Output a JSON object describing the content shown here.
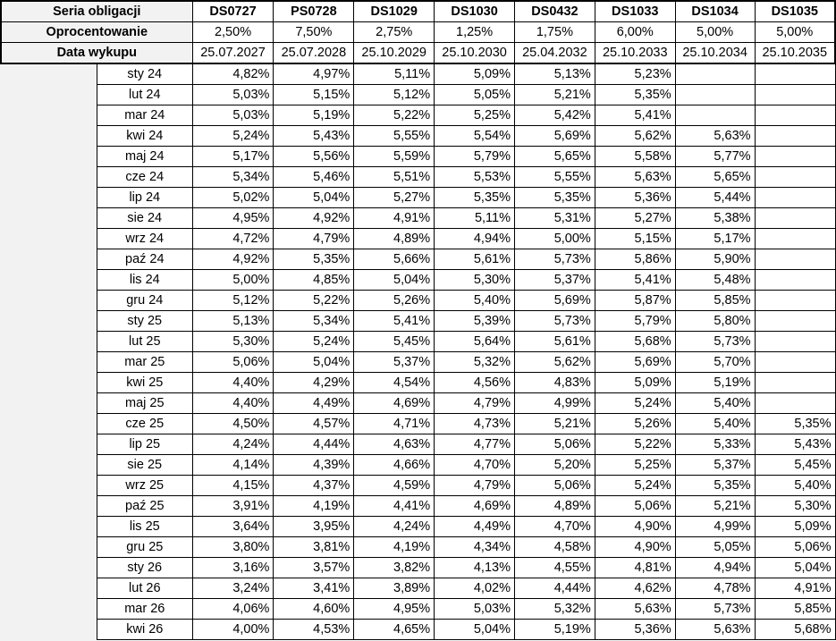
{
  "header": {
    "series_label": "Seria obligacji",
    "rate_label": "Oprocentowanie",
    "date_label": "Data wykupu"
  },
  "series": [
    {
      "code": "DS0727",
      "rate": "2,50%",
      "maturity": "25.07.2027"
    },
    {
      "code": "PS0728",
      "rate": "7,50%",
      "maturity": "25.07.2028"
    },
    {
      "code": "DS1029",
      "rate": "2,75%",
      "maturity": "25.10.2029"
    },
    {
      "code": "DS1030",
      "rate": "1,25%",
      "maturity": "25.10.2030"
    },
    {
      "code": "DS0432",
      "rate": "1,75%",
      "maturity": "25.04.2032"
    },
    {
      "code": "DS1033",
      "rate": "6,00%",
      "maturity": "25.10.2033"
    },
    {
      "code": "DS1034",
      "rate": "5,00%",
      "maturity": "25.10.2034"
    },
    {
      "code": "DS1035",
      "rate": "5,00%",
      "maturity": "25.10.2035"
    }
  ],
  "rows": [
    {
      "month": "sty 24",
      "values": [
        "4,82%",
        "4,97%",
        "5,11%",
        "5,09%",
        "5,13%",
        "5,23%",
        "",
        ""
      ]
    },
    {
      "month": "lut 24",
      "values": [
        "5,03%",
        "5,15%",
        "5,12%",
        "5,05%",
        "5,21%",
        "5,35%",
        "",
        ""
      ]
    },
    {
      "month": "mar 24",
      "values": [
        "5,03%",
        "5,19%",
        "5,22%",
        "5,25%",
        "5,42%",
        "5,41%",
        "",
        ""
      ]
    },
    {
      "month": "kwi 24",
      "values": [
        "5,24%",
        "5,43%",
        "5,55%",
        "5,54%",
        "5,69%",
        "5,62%",
        "5,63%",
        ""
      ]
    },
    {
      "month": "maj 24",
      "values": [
        "5,17%",
        "5,56%",
        "5,59%",
        "5,79%",
        "5,65%",
        "5,58%",
        "5,77%",
        ""
      ]
    },
    {
      "month": "cze 24",
      "values": [
        "5,34%",
        "5,46%",
        "5,51%",
        "5,53%",
        "5,55%",
        "5,63%",
        "5,65%",
        ""
      ]
    },
    {
      "month": "lip 24",
      "values": [
        "5,02%",
        "5,04%",
        "5,27%",
        "5,35%",
        "5,35%",
        "5,36%",
        "5,44%",
        ""
      ]
    },
    {
      "month": "sie 24",
      "values": [
        "4,95%",
        "4,92%",
        "4,91%",
        "5,11%",
        "5,31%",
        "5,27%",
        "5,38%",
        ""
      ]
    },
    {
      "month": "wrz 24",
      "values": [
        "4,72%",
        "4,79%",
        "4,89%",
        "4,94%",
        "5,00%",
        "5,15%",
        "5,17%",
        ""
      ]
    },
    {
      "month": "paź 24",
      "values": [
        "4,92%",
        "5,35%",
        "5,66%",
        "5,61%",
        "5,73%",
        "5,86%",
        "5,90%",
        ""
      ]
    },
    {
      "month": "lis 24",
      "values": [
        "5,00%",
        "4,85%",
        "5,04%",
        "5,30%",
        "5,37%",
        "5,41%",
        "5,48%",
        ""
      ]
    },
    {
      "month": "gru 24",
      "values": [
        "5,12%",
        "5,22%",
        "5,26%",
        "5,40%",
        "5,69%",
        "5,87%",
        "5,85%",
        ""
      ]
    },
    {
      "month": "sty 25",
      "values": [
        "5,13%",
        "5,34%",
        "5,41%",
        "5,39%",
        "5,73%",
        "5,79%",
        "5,80%",
        ""
      ]
    },
    {
      "month": "lut 25",
      "values": [
        "5,30%",
        "5,24%",
        "5,45%",
        "5,64%",
        "5,61%",
        "5,68%",
        "5,73%",
        ""
      ]
    },
    {
      "month": "mar 25",
      "values": [
        "5,06%",
        "5,04%",
        "5,37%",
        "5,32%",
        "5,62%",
        "5,69%",
        "5,70%",
        ""
      ]
    },
    {
      "month": "kwi 25",
      "values": [
        "4,40%",
        "4,29%",
        "4,54%",
        "4,56%",
        "4,83%",
        "5,09%",
        "5,19%",
        ""
      ]
    },
    {
      "month": "maj 25",
      "values": [
        "4,40%",
        "4,49%",
        "4,69%",
        "4,79%",
        "4,99%",
        "5,24%",
        "5,40%",
        ""
      ]
    },
    {
      "month": "cze 25",
      "values": [
        "4,50%",
        "4,57%",
        "4,71%",
        "4,73%",
        "5,21%",
        "5,26%",
        "5,40%",
        "5,35%"
      ]
    },
    {
      "month": "lip 25",
      "values": [
        "4,24%",
        "4,44%",
        "4,63%",
        "4,77%",
        "5,06%",
        "5,22%",
        "5,33%",
        "5,43%"
      ]
    },
    {
      "month": "sie 25",
      "values": [
        "4,14%",
        "4,39%",
        "4,66%",
        "4,70%",
        "5,20%",
        "5,25%",
        "5,37%",
        "5,45%"
      ]
    },
    {
      "month": "wrz 25",
      "values": [
        "4,15%",
        "4,37%",
        "4,59%",
        "4,79%",
        "5,06%",
        "5,24%",
        "5,35%",
        "5,40%"
      ]
    },
    {
      "month": "paź 25",
      "values": [
        "3,91%",
        "4,19%",
        "4,41%",
        "4,69%",
        "4,89%",
        "5,06%",
        "5,21%",
        "5,30%"
      ]
    },
    {
      "month": "lis 25",
      "values": [
        "3,64%",
        "3,95%",
        "4,24%",
        "4,49%",
        "4,70%",
        "4,90%",
        "4,99%",
        "5,09%"
      ]
    },
    {
      "month": "gru 25",
      "values": [
        "3,80%",
        "3,81%",
        "4,19%",
        "4,34%",
        "4,58%",
        "4,90%",
        "5,05%",
        "5,06%"
      ]
    },
    {
      "month": "sty 26",
      "values": [
        "3,16%",
        "3,57%",
        "3,82%",
        "4,13%",
        "4,55%",
        "4,81%",
        "4,94%",
        "5,04%"
      ]
    },
    {
      "month": "lut 26",
      "values": [
        "3,24%",
        "3,41%",
        "3,89%",
        "4,02%",
        "4,44%",
        "4,62%",
        "4,78%",
        "4,91%"
      ]
    },
    {
      "month": "mar 26",
      "values": [
        "4,06%",
        "4,60%",
        "4,95%",
        "5,03%",
        "5,32%",
        "5,63%",
        "5,73%",
        "5,85%"
      ]
    },
    {
      "month": "kwi 26",
      "values": [
        "4,00%",
        "4,53%",
        "4,65%",
        "5,04%",
        "5,19%",
        "5,36%",
        "5,63%",
        "5,68%"
      ]
    }
  ]
}
